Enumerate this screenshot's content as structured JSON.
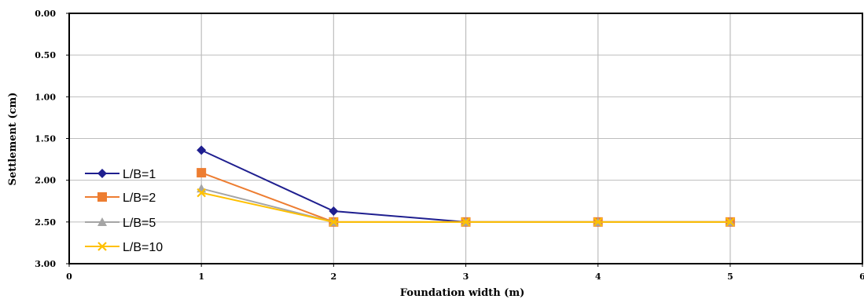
{
  "chart_data": {
    "type": "line",
    "xlabel": "Foundation width (m)",
    "ylabel": "Settlement (cm)",
    "xlim": [
      0,
      6
    ],
    "ylim": [
      0,
      3
    ],
    "y_inverted": true,
    "xticks": [
      "0",
      "1",
      "2",
      "3",
      "4",
      "5",
      "6"
    ],
    "yticks": [
      "0.00",
      "0.50",
      "1.00",
      "1.50",
      "2.00",
      "2.50",
      "3.00"
    ],
    "grid": "vertical",
    "legend_position": "left",
    "x": [
      1,
      2,
      3,
      4,
      5
    ],
    "series": [
      {
        "name": "L/B=1",
        "color": "#1f1f8f",
        "marker": "diamond",
        "values": [
          1.64,
          2.37,
          2.5,
          2.5,
          2.5
        ]
      },
      {
        "name": "L/B=2",
        "color": "#ed7d31",
        "marker": "square",
        "values": [
          1.91,
          2.5,
          2.5,
          2.5,
          2.5
        ]
      },
      {
        "name": "L/B=5",
        "color": "#a5a5a5",
        "marker": "triangle",
        "values": [
          2.1,
          2.5,
          2.5,
          2.5,
          2.5
        ]
      },
      {
        "name": "L/B=10",
        "color": "#ffc000",
        "marker": "x",
        "values": [
          2.15,
          2.5,
          2.5,
          2.5,
          2.5
        ]
      }
    ]
  }
}
